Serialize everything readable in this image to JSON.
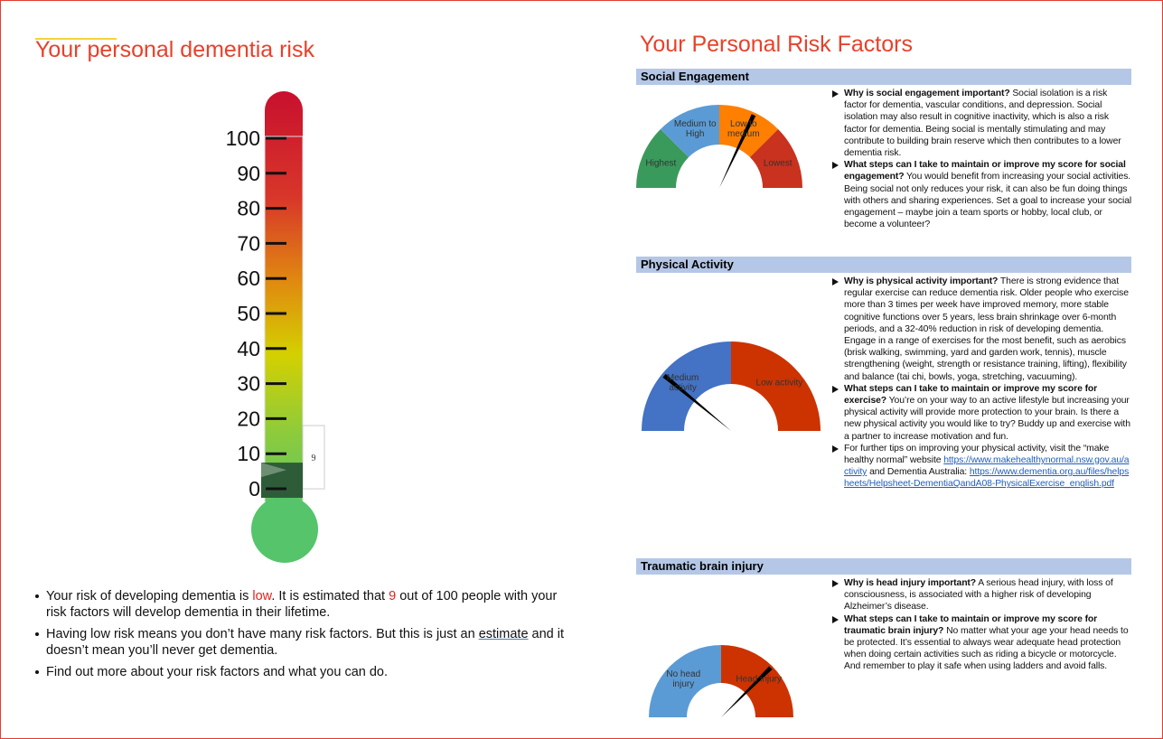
{
  "left": {
    "title": "Your personal dementia risk",
    "thermometer": {
      "ylim": [
        0,
        100
      ],
      "ticks": [
        0,
        10,
        20,
        30,
        40,
        50,
        60,
        70,
        80,
        90,
        100
      ],
      "value": 9
    },
    "bullets": [
      {
        "parts": [
          {
            "text": "Your risk of developing dementia is ",
            "style": "plain"
          },
          {
            "text": "low",
            "style": "red"
          },
          {
            "text": ". It is estimated that ",
            "style": "plain"
          },
          {
            "text": "9",
            "style": "red"
          },
          {
            "text": " out of 100 people with your risk factors will develop dementia in their lifetime.",
            "style": "plain"
          }
        ]
      },
      {
        "parts": [
          {
            "text": "Having low risk means you don’t have many risk factors. But this is just an ",
            "style": "plain"
          },
          {
            "text": "estimate",
            "style": "underline"
          },
          {
            "text": " and it doesn’t mean you’ll never get dementia.",
            "style": "plain"
          }
        ]
      },
      {
        "parts": [
          {
            "text": "Find out more about your risk factors and what you can do.",
            "style": "plain"
          }
        ]
      }
    ]
  },
  "right": {
    "title": "Your Personal Risk Factors",
    "sections": [
      {
        "heading": "Social Engagement",
        "gauge": {
          "segments": [
            {
              "label": "Highest",
              "color": "#3a9a5b"
            },
            {
              "label": "Medium to High",
              "color": "#5b9bd5"
            },
            {
              "label": "Low to medium",
              "color": "#ff7f00"
            },
            {
              "label": "Lowest",
              "color": "#c8321e"
            }
          ],
          "needle": 0.64
        },
        "items": [
          {
            "parts": [
              {
                "text": "Why is social engagement important?",
                "style": "bold"
              },
              {
                "text": " Social isolation is a risk factor for dementia, vascular conditions, and depression. Social isolation may also result in cognitive inactivity, which is also a risk factor for dementia. Being social is mentally stimulating and may contribute to building brain reserve which then contributes to a lower dementia risk.",
                "style": "plain"
              }
            ]
          },
          {
            "parts": [
              {
                "text": "What steps can I take to maintain or improve my score for social engagement?",
                "style": "bold"
              },
              {
                "text": " You would benefit from increasing your social activities. Being social not only reduces your risk, it can also be fun doing things with others and sharing experiences. Set a goal to increase your social engagement – maybe join a team sports or hobby, local club, or become a volunteer?",
                "style": "plain"
              }
            ]
          }
        ]
      },
      {
        "heading": "Physical Activity",
        "gauge": {
          "segments": [
            {
              "label": "Medium activity",
              "color": "#4472c4"
            },
            {
              "label": "Low activity",
              "color": "#cc3300"
            }
          ],
          "needle": 0.22
        },
        "items": [
          {
            "parts": [
              {
                "text": "Why is physical activity important?",
                "style": "bold"
              },
              {
                "text": " There is strong evidence that regular exercise can reduce dementia risk. Older people who exercise more than 3 times per week have improved memory, more stable cognitive functions over 5 years, less brain shrinkage over 6-month periods, and a 32-40% reduction in risk of developing dementia. Engage in a range of exercises for the most benefit, such as aerobics (brisk walking, swimming, yard and garden work, tennis), muscle strengthening (weight, strength or resistance training, lifting), flexibility and balance (tai chi, bowls, yoga, stretching, vacuuming).",
                "style": "plain"
              }
            ]
          },
          {
            "parts": [
              {
                "text": "What steps can I take to maintain or improve my score for exercise?",
                "style": "bold"
              },
              {
                "text": " You’re on your way to an active lifestyle but increasing your physical activity will provide more protection to your brain. Is there a new physical activity you would like to try? Buddy up and exercise with a partner to increase motivation and fun.",
                "style": "plain"
              }
            ]
          },
          {
            "parts": [
              {
                "text": "For further tips on improving your physical activity, visit the “make healthy normal” website ",
                "style": "plain"
              },
              {
                "text": "https://www.makehealthynormal.nsw.gov.au/activity",
                "style": "link"
              },
              {
                "text": " and Dementia Australia: ",
                "style": "plain"
              },
              {
                "text": "https://www.dementia.org.au/files/helpsheets/Helpsheet-DementiaQandA08-PhysicalExercise_english.pdf",
                "style": "link"
              }
            ]
          }
        ]
      },
      {
        "heading": "Traumatic brain injury",
        "gauge": {
          "segments": [
            {
              "label": "No head injury",
              "color": "#5b9bd5"
            },
            {
              "label": "Head injury",
              "color": "#cc3300"
            }
          ],
          "needle": 0.75
        },
        "items": [
          {
            "parts": [
              {
                "text": "Why is head injury important?",
                "style": "bold"
              },
              {
                "text": " A serious head injury, with loss of consciousness, is associated with a higher risk of developing Alzheimer’s disease.",
                "style": "plain"
              }
            ]
          },
          {
            "parts": [
              {
                "text": "What steps can I take to maintain or improve my score for traumatic brain injury?",
                "style": "bold"
              },
              {
                "text": "  No matter what your age your head needs to be protected. It’s essential to always wear adequate head protection when doing certain activities such as riding a bicycle or motorcycle. And remember to play it safe when using ladders and avoid falls.",
                "style": "plain"
              }
            ]
          }
        ]
      }
    ]
  }
}
